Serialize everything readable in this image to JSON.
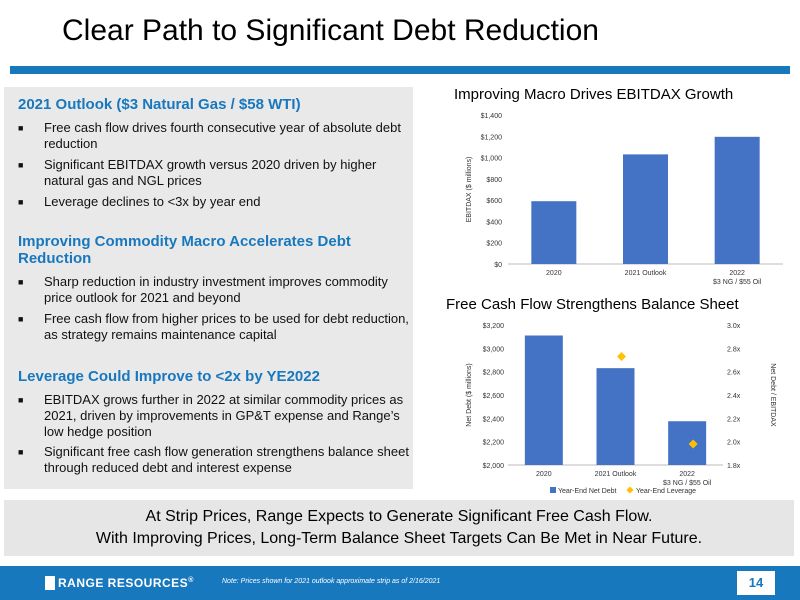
{
  "title": "Clear Path to Significant Debt Reduction",
  "sections": [
    {
      "heading": "2021 Outlook ($3 Natural Gas / $58 WTI)",
      "bullets": [
        "Free cash flow drives fourth consecutive year of absolute debt reduction",
        "Significant EBITDAX growth versus 2020 driven by higher natural gas and NGL prices",
        "Leverage declines to <3x by year end"
      ]
    },
    {
      "heading": "Improving Commodity Macro Accelerates Debt Reduction",
      "bullets": [
        "Sharp reduction in industry investment improves commodity price outlook for 2021 and beyond",
        "Free cash flow from higher prices to be used for debt reduction, as strategy remains maintenance capital"
      ]
    },
    {
      "heading": "Leverage Could Improve to <2x by YE2022",
      "bullets": [
        "EBITDAX grows further in 2022 at similar commodity prices as 2021, driven by improvements in GP&T expense and Range’s low hedge position",
        "Significant free cash flow generation strengthens balance sheet through reduced debt and interest expense"
      ]
    }
  ],
  "chart_data": [
    {
      "type": "bar",
      "title": "Improving Macro Drives EBITDAX Growth",
      "ylabel": "EBITDAX ($ millions)",
      "categories": [
        "2020",
        "2021 Outlook",
        "2022"
      ],
      "category_sublabels": [
        "",
        "",
        "$3 NG / $55 Oil"
      ],
      "values": [
        590,
        1030,
        1195
      ],
      "ylim": [
        0,
        1400
      ],
      "yticks": [
        "$0",
        "$200",
        "$400",
        "$600",
        "$800",
        "$1,000",
        "$1,200",
        "$1,400"
      ],
      "color": "#4472c4"
    },
    {
      "type": "bar",
      "title": "Free Cash Flow Strengthens Balance Sheet",
      "ylabel": "Net Debt ($ millions)",
      "y2label": "Net Debt / EBITDAX",
      "categories": [
        "2020",
        "2021 Outlook",
        "2022"
      ],
      "category_sublabels": [
        "",
        "",
        "$3 NG / $55 Oil"
      ],
      "series": [
        {
          "name": "Year-End Net Debt",
          "type": "bar",
          "axis": "left",
          "values": [
            3110,
            2830,
            2375
          ],
          "color": "#4472c4"
        },
        {
          "name": "Year-End Leverage",
          "type": "scatter",
          "axis": "right",
          "values": [
            null,
            2.73,
            1.98
          ],
          "color": "#ffc000"
        }
      ],
      "ylim": [
        2000,
        3200
      ],
      "yticks": [
        "$2,000",
        "$2,200",
        "$2,400",
        "$2,600",
        "$2,800",
        "$3,000",
        "$3,200"
      ],
      "y2lim": [
        1.8,
        3.0
      ],
      "y2ticks": [
        "1.8x",
        "2.0x",
        "2.2x",
        "2.4x",
        "2.6x",
        "2.8x",
        "3.0x"
      ],
      "legend": "bottom"
    }
  ],
  "banner": {
    "line1": "At Strip Prices, Range Expects to Generate Significant Free Cash Flow.",
    "line2": "With Improving Prices, Long-Term Balance Sheet Targets Can Be Met in Near Future."
  },
  "footer": {
    "logo": "RANGE RESOURCES",
    "logo_mark": "®",
    "note": "Note: Prices shown for 2021 outlook approximate strip as of 2/16/2021",
    "page": "14"
  }
}
